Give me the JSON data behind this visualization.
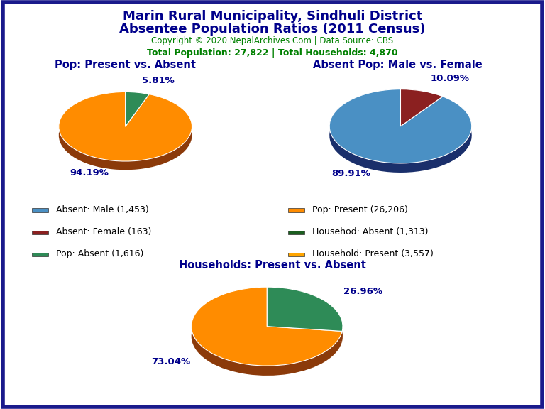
{
  "title_line1": "Marin Rural Municipality, Sindhuli District",
  "title_line2": "Absentee Population Ratios (2011 Census)",
  "title_color": "#00008B",
  "copyright_text": "Copyright © 2020 NepalArchives.Com | Data Source: CBS",
  "copyright_color": "#008000",
  "stats_text": "Total Population: 27,822 | Total Households: 4,870",
  "stats_color": "#008000",
  "pie1_title": "Pop: Present vs. Absent",
  "pie1_values": [
    94.19,
    5.81
  ],
  "pie1_colors": [
    "#FF8C00",
    "#2E8B57"
  ],
  "pie1_shadow_color": "#8B3A0A",
  "pie1_labels": [
    "94.19%",
    "5.81%"
  ],
  "pie1_label_angles": [
    200,
    45
  ],
  "pie2_title": "Absent Pop: Male vs. Female",
  "pie2_values": [
    89.91,
    10.09
  ],
  "pie2_colors": [
    "#4A90C4",
    "#8B2020"
  ],
  "pie2_shadow_color": "#1A2F6B",
  "pie2_labels": [
    "89.91%",
    "10.09%"
  ],
  "pie2_label_angles": [
    200,
    45
  ],
  "pie3_title": "Households: Present vs. Absent",
  "pie3_values": [
    73.04,
    26.96
  ],
  "pie3_colors": [
    "#FF8C00",
    "#2E8B57"
  ],
  "pie3_shadow_color": "#8B3A0A",
  "pie3_labels": [
    "73.04%",
    "26.96%"
  ],
  "pie3_label_angles": [
    200,
    45
  ],
  "legend_items": [
    {
      "label": "Absent: Male (1,453)",
      "color": "#4A90C4"
    },
    {
      "label": "Absent: Female (163)",
      "color": "#8B2020"
    },
    {
      "label": "Pop: Absent (1,616)",
      "color": "#2E8B57"
    },
    {
      "label": "Pop: Present (26,206)",
      "color": "#FF8C00"
    },
    {
      "label": "Househod: Absent (1,313)",
      "color": "#1B5E20"
    },
    {
      "label": "Household: Present (3,557)",
      "color": "#FFA500"
    }
  ],
  "label_color": "#00008B",
  "subtitle_color": "#00008B",
  "background_color": "#FFFFFF",
  "border_color": "#1a1a8c"
}
